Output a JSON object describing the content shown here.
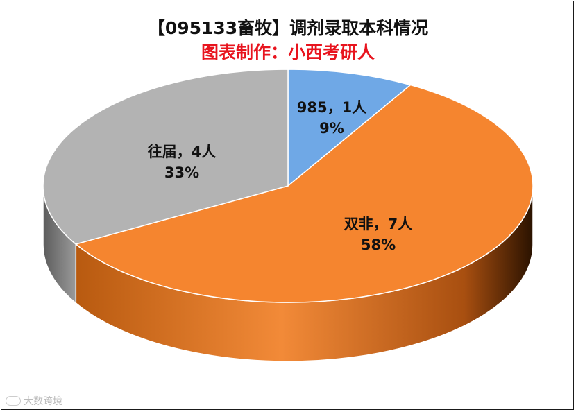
{
  "title": "【095133畜牧】调剂录取本科情况",
  "subtitle": "图表制作：小西考研人",
  "watermark": "大数跨境",
  "chart_data": {
    "type": "pie",
    "style": "3d",
    "unit": "人",
    "slices": [
      {
        "name": "985",
        "count": 1,
        "percent": 9,
        "color": "#6fa8e6",
        "label_line1": "985，1人",
        "label_line2": "9%"
      },
      {
        "name": "双非",
        "count": 7,
        "percent": 58,
        "color": "#f5852f",
        "label_line1": "双非，7人",
        "label_line2": "58%"
      },
      {
        "name": "往届",
        "count": 4,
        "percent": 33,
        "color": "#b3b3b3",
        "label_line1": "往届，4人",
        "label_line2": "33%"
      }
    ]
  }
}
